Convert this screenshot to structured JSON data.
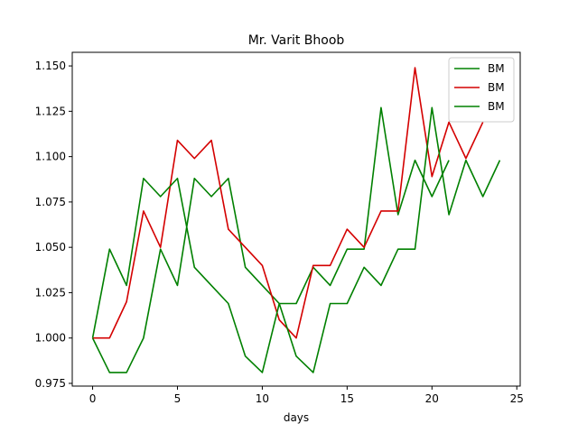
{
  "chart_data": {
    "type": "line",
    "title": "Mr. Varit Bhoob",
    "xlabel": "days",
    "ylabel": "",
    "xlim": [
      -1.2,
      25.2
    ],
    "ylim": [
      0.9735,
      1.1575
    ],
    "x_ticks": [
      0,
      5,
      10,
      15,
      20,
      25
    ],
    "x_tick_labels": [
      "0",
      "5",
      "10",
      "15",
      "20",
      "25"
    ],
    "y_ticks": [
      0.975,
      1.0,
      1.025,
      1.05,
      1.075,
      1.1,
      1.125,
      1.15
    ],
    "y_tick_labels": [
      "0.975",
      "1.000",
      "1.025",
      "1.050",
      "1.075",
      "1.100",
      "1.125",
      "1.150"
    ],
    "grid": false,
    "legend_position": "top-right",
    "series": [
      {
        "name": "BM",
        "color": "#008000",
        "x": [
          0,
          1,
          2,
          3,
          4,
          5,
          6,
          7,
          8,
          9,
          10,
          11,
          12,
          13,
          14,
          15,
          16,
          17,
          18,
          19,
          20,
          21
        ],
        "values": [
          1.0,
          0.981,
          0.981,
          1.0,
          1.049,
          1.029,
          1.088,
          1.078,
          1.088,
          1.039,
          1.029,
          1.019,
          1.019,
          1.039,
          1.029,
          1.049,
          1.049,
          1.127,
          1.068,
          1.098,
          1.078,
          1.098
        ]
      },
      {
        "name": "BM",
        "color": "#d40000",
        "x": [
          0,
          1,
          2,
          3,
          4,
          5,
          6,
          7,
          8,
          9,
          10,
          11,
          12,
          13,
          14,
          15,
          16,
          17,
          18,
          19,
          20,
          21,
          22,
          23
        ],
        "values": [
          1.0,
          1.0,
          1.02,
          1.07,
          1.05,
          1.109,
          1.099,
          1.109,
          1.06,
          1.05,
          1.04,
          1.01,
          1.0,
          1.04,
          1.04,
          1.06,
          1.05,
          1.07,
          1.07,
          1.149,
          1.089,
          1.119,
          1.099,
          1.119
        ]
      },
      {
        "name": "BM",
        "color": "#008000",
        "x": [
          0,
          1,
          2,
          3,
          4,
          5,
          6,
          7,
          8,
          9,
          10,
          11,
          12,
          13,
          14,
          15,
          16,
          17,
          18,
          19,
          20,
          21,
          22,
          23,
          24
        ],
        "values": [
          1.0,
          1.049,
          1.029,
          1.088,
          1.078,
          1.088,
          1.039,
          1.029,
          1.019,
          0.99,
          0.981,
          1.019,
          0.99,
          0.981,
          1.019,
          1.019,
          1.039,
          1.029,
          1.049,
          1.049,
          1.127,
          1.068,
          1.098,
          1.078,
          1.098
        ]
      }
    ]
  }
}
